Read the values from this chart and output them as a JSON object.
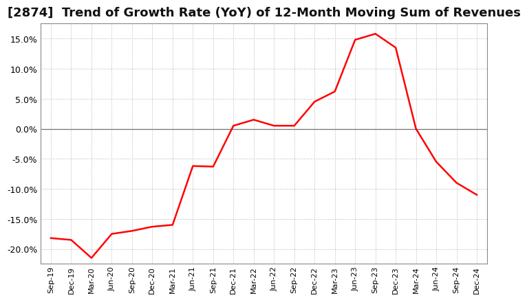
{
  "title": "[2874]  Trend of Growth Rate (YoY) of 12-Month Moving Sum of Revenues",
  "line_color": "#ff0000",
  "line_width": 1.8,
  "background_color": "#ffffff",
  "plot_bg_color": "#ffffff",
  "grid_color": "#999999",
  "zero_line_color": "#666666",
  "spine_color": "#888888",
  "ylim": [
    -0.225,
    0.175
  ],
  "yticks": [
    -0.2,
    -0.15,
    -0.1,
    -0.05,
    0.0,
    0.05,
    0.1,
    0.15
  ],
  "dates": [
    "Sep-19",
    "Dec-19",
    "Mar-20",
    "Jun-20",
    "Sep-20",
    "Dec-20",
    "Mar-21",
    "Jun-21",
    "Sep-21",
    "Dec-21",
    "Mar-22",
    "Jun-22",
    "Sep-22",
    "Dec-22",
    "Mar-23",
    "Jun-23",
    "Sep-23",
    "Dec-23",
    "Mar-24",
    "Jun-24",
    "Sep-24",
    "Dec-24"
  ],
  "values": [
    -0.182,
    -0.185,
    -0.215,
    -0.175,
    -0.17,
    -0.163,
    -0.16,
    -0.062,
    -0.063,
    0.005,
    0.015,
    0.005,
    0.005,
    0.045,
    0.062,
    0.148,
    0.158,
    0.135,
    0.0,
    -0.055,
    -0.09,
    -0.11
  ],
  "title_fontsize": 13,
  "tick_fontsize": 9,
  "xtick_fontsize": 8
}
